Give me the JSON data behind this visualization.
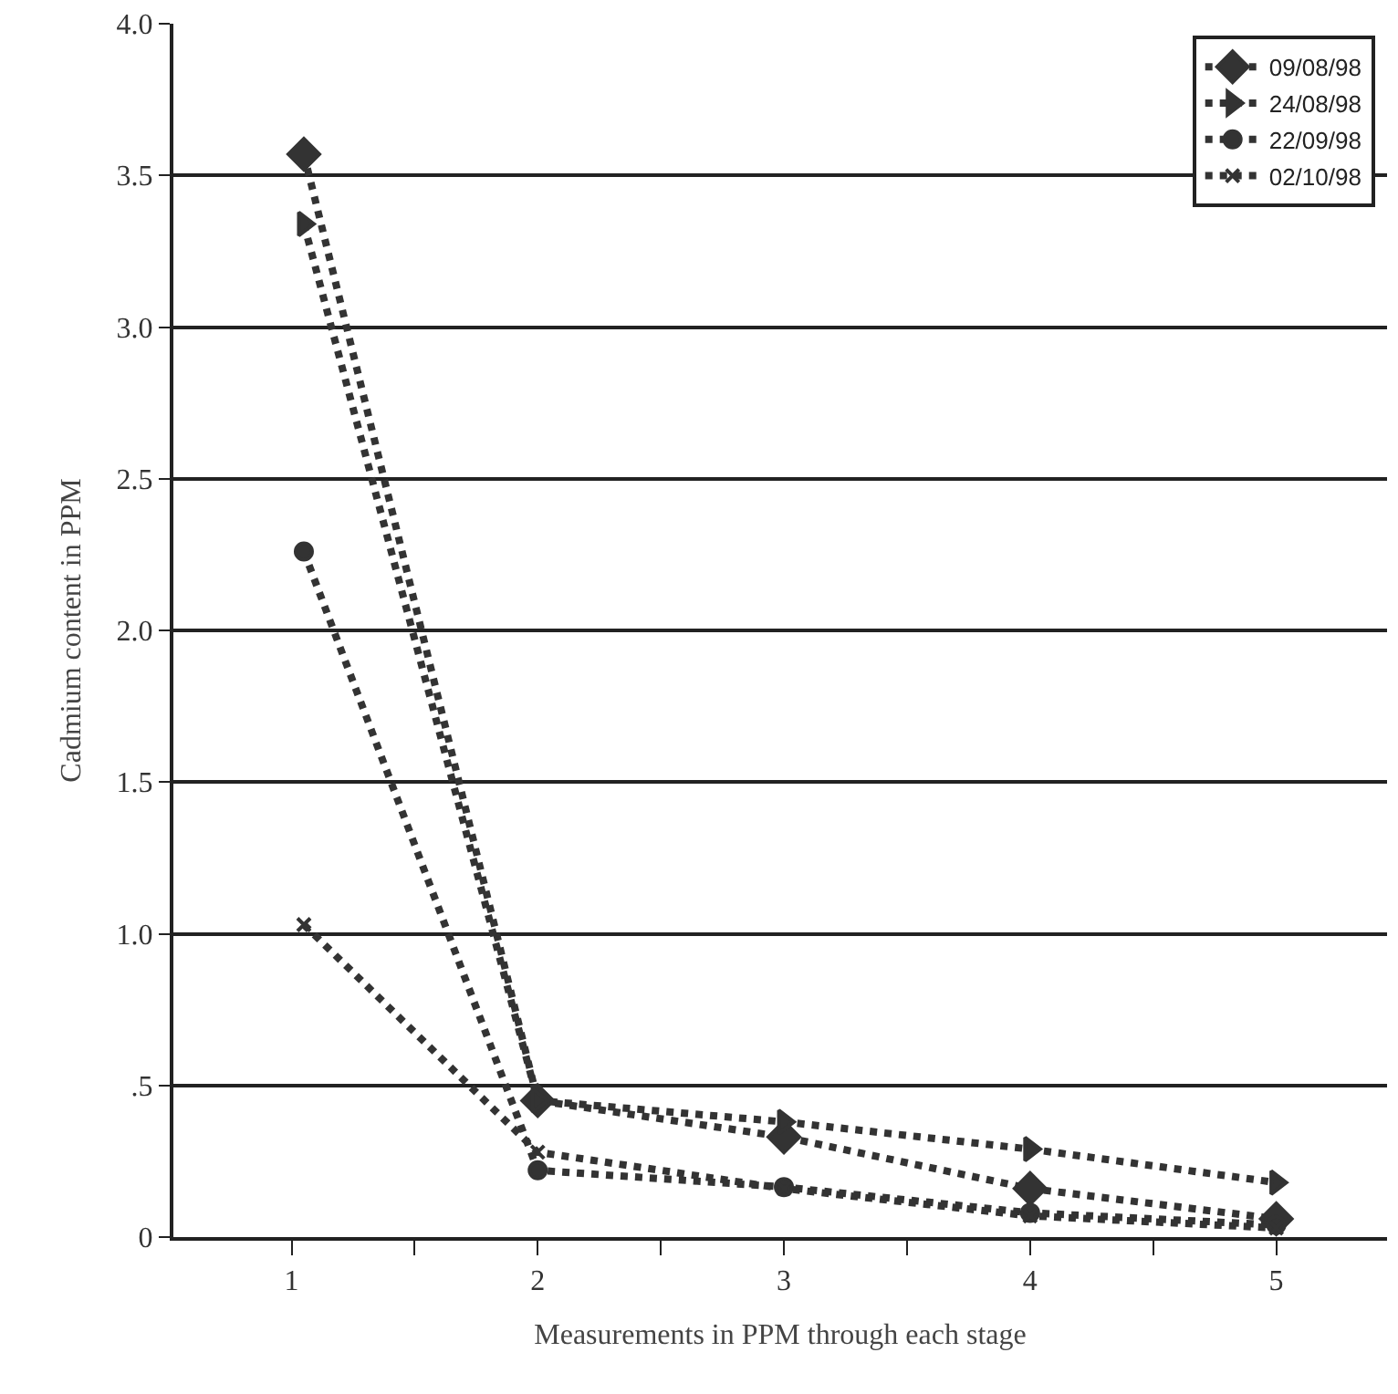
{
  "chart_data": {
    "type": "line",
    "xlabel": "Measurements in PPM through each stage",
    "ylabel": "Cadmium content in PPM",
    "x": [
      1.05,
      2,
      3,
      4,
      5
    ],
    "series": [
      {
        "name": "09/08/98",
        "color": "#333333",
        "marker": "diamond",
        "values": [
          3.57,
          0.45,
          0.33,
          0.16,
          0.06
        ]
      },
      {
        "name": "24/08/98",
        "color": "#333333",
        "marker": "triangle",
        "values": [
          3.34,
          0.45,
          0.38,
          0.29,
          0.18
        ]
      },
      {
        "name": "22/09/98",
        "color": "#333333",
        "marker": "circle",
        "values": [
          2.26,
          0.22,
          0.165,
          0.08,
          0.04
        ]
      },
      {
        "name": "02/10/98",
        "color": "#333333",
        "marker": "cross",
        "values": [
          1.03,
          0.28,
          0.16,
          0.07,
          0.03
        ]
      }
    ],
    "line_style": "dotted",
    "xlim": [
      0.52,
      5.45
    ],
    "xticks": [
      1,
      {
        "value": 1.5,
        "label": null
      },
      2,
      {
        "value": 2.5,
        "label": null
      },
      3,
      {
        "value": 3.5,
        "label": null
      },
      4,
      {
        "value": 4.5,
        "label": null
      },
      5
    ],
    "ylim": [
      0,
      4.0
    ],
    "yticks": [
      0,
      {
        "value": 0.5,
        "label": ".5"
      },
      {
        "value": 1.0,
        "label": "1.0"
      },
      {
        "value": 1.5,
        "label": "1.5"
      },
      {
        "value": 2.0,
        "label": "2.0"
      },
      {
        "value": 2.5,
        "label": "2.5"
      },
      {
        "value": 3.0,
        "label": "3.0"
      },
      {
        "value": 3.5,
        "label": "3.5"
      },
      {
        "value": 4.0,
        "label": "4.0"
      }
    ],
    "grid": "y",
    "legend": "top right"
  }
}
